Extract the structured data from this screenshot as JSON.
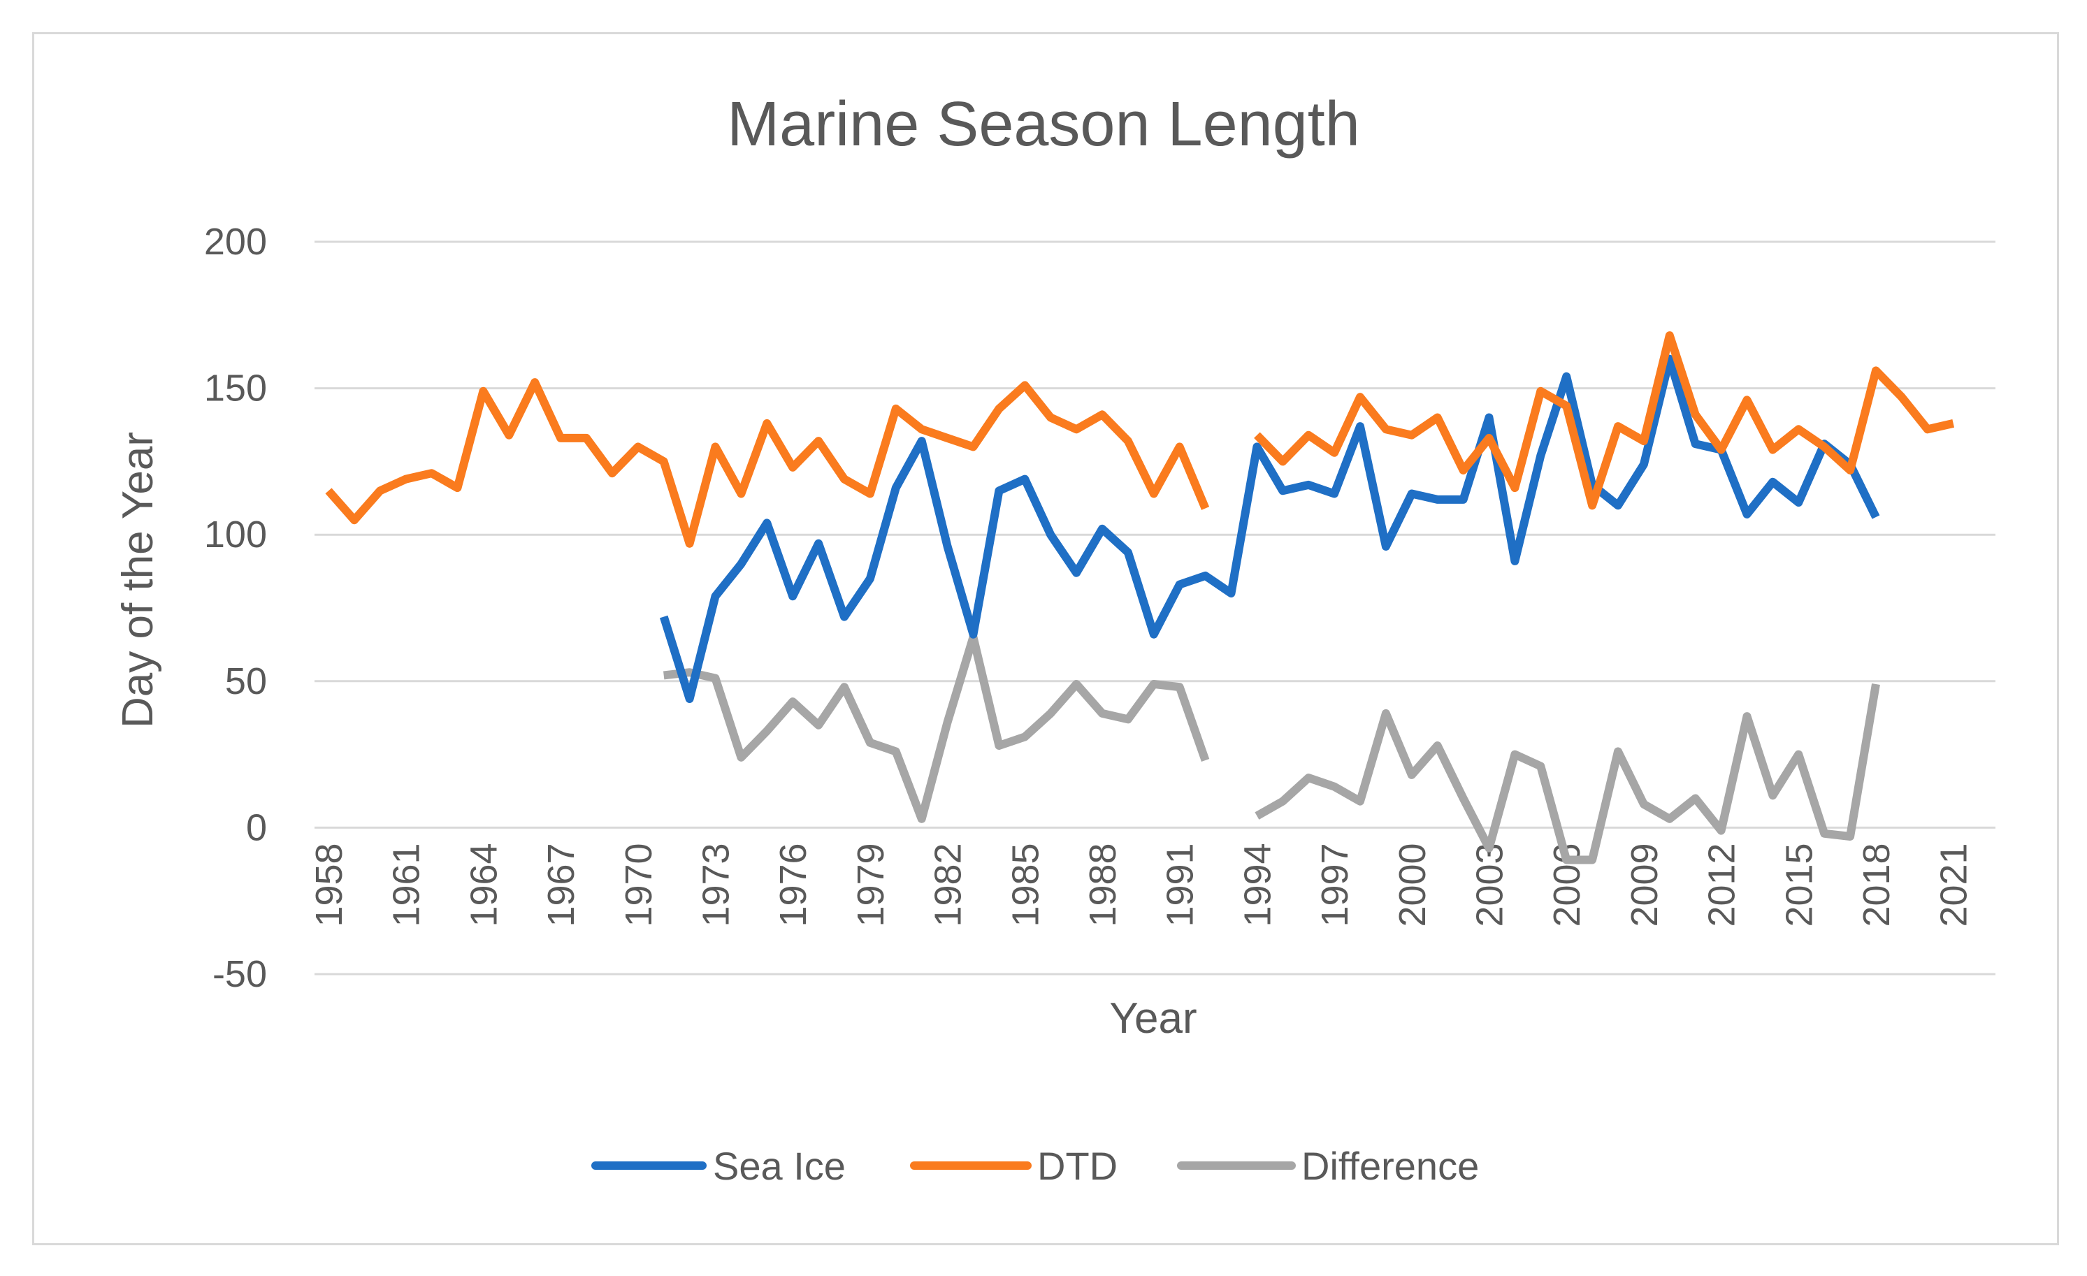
{
  "chart_data": {
    "type": "line",
    "title": "Marine Season Length",
    "xlabel": "Year",
    "ylabel": "Day of the Year",
    "ylim": [
      -50,
      200
    ],
    "yticks": [
      -50,
      0,
      50,
      100,
      150,
      200
    ],
    "xlim": [
      1958,
      2021
    ],
    "xtick_labels": [
      "1958",
      "1961",
      "1964",
      "1967",
      "1970",
      "1973",
      "1976",
      "1979",
      "1982",
      "1985",
      "1988",
      "1991",
      "1994",
      "1997",
      "2000",
      "2003",
      "2006",
      "2009",
      "2012",
      "2015",
      "2018",
      "2021"
    ],
    "grid": true,
    "legend_position": "bottom",
    "colors": {
      "Sea Ice": "#1f6fc5",
      "DTD": "#fa7b1e",
      "Difference": "#a6a6a6",
      "grid": "#d9d9d9",
      "text": "#595959"
    },
    "series": [
      {
        "name": "Sea Ice",
        "x": [
          1971,
          1972,
          1973,
          1974,
          1975,
          1976,
          1977,
          1978,
          1979,
          1980,
          1981,
          1982,
          1983,
          1984,
          1985,
          1986,
          1987,
          1988,
          1989,
          1990,
          1991,
          1992,
          1993,
          1994,
          1995,
          1996,
          1997,
          1998,
          1999,
          2000,
          2001,
          2002,
          2003,
          2004,
          2005,
          2006,
          2007,
          2008,
          2009,
          2010,
          2011,
          2012,
          2013,
          2014,
          2015,
          2016,
          2017,
          2018
        ],
        "values": [
          72,
          44,
          79,
          90,
          104,
          79,
          97,
          72,
          85,
          116,
          132,
          96,
          66,
          115,
          119,
          100,
          87,
          102,
          94,
          66,
          83,
          86,
          80,
          130,
          115,
          117,
          114,
          137,
          96,
          114,
          112,
          112,
          140,
          91,
          127,
          154,
          117,
          110,
          124,
          160,
          131,
          129,
          107,
          118,
          111,
          131,
          124,
          106
        ]
      },
      {
        "name": "DTD",
        "x": [
          1958,
          1959,
          1960,
          1961,
          1962,
          1963,
          1964,
          1965,
          1966,
          1967,
          1968,
          1969,
          1970,
          1971,
          1972,
          1973,
          1974,
          1975,
          1976,
          1977,
          1978,
          1979,
          1980,
          1981,
          1982,
          1983,
          1984,
          1985,
          1986,
          1987,
          1988,
          1989,
          1990,
          1991,
          1992,
          1993,
          1994,
          1995,
          1996,
          1997,
          1998,
          1999,
          2000,
          2001,
          2002,
          2003,
          2004,
          2005,
          2006,
          2007,
          2008,
          2009,
          2010,
          2011,
          2012,
          2013,
          2014,
          2015,
          2016,
          2017,
          2018,
          2019,
          2020,
          2021
        ],
        "values": [
          115,
          105,
          115,
          119,
          121,
          116,
          149,
          134,
          152,
          133,
          133,
          121,
          130,
          125,
          97,
          130,
          114,
          138,
          123,
          132,
          119,
          114,
          143,
          136,
          133,
          130,
          143,
          151,
          140,
          136,
          141,
          132,
          114,
          130,
          109,
          null,
          134,
          125,
          134,
          128,
          147,
          136,
          134,
          140,
          122,
          133,
          116,
          149,
          144,
          110,
          137,
          132,
          168,
          141,
          129,
          146,
          129,
          136,
          130,
          122,
          156,
          147,
          136,
          138
        ]
      },
      {
        "name": "Difference",
        "x": [
          1971,
          1972,
          1973,
          1974,
          1975,
          1976,
          1977,
          1978,
          1979,
          1980,
          1981,
          1982,
          1983,
          1984,
          1985,
          1986,
          1987,
          1988,
          1989,
          1990,
          1991,
          1992,
          1993,
          1994,
          1995,
          1996,
          1997,
          1998,
          1999,
          2000,
          2001,
          2002,
          2003,
          2004,
          2005,
          2006,
          2007,
          2008,
          2009,
          2010,
          2011,
          2012,
          2013,
          2014,
          2015,
          2016,
          2017,
          2018
        ],
        "values": [
          52,
          53,
          51,
          24,
          33,
          43,
          35,
          48,
          29,
          26,
          3,
          36,
          65,
          28,
          31,
          39,
          49,
          39,
          37,
          49,
          48,
          23,
          null,
          4,
          9,
          17,
          14,
          9,
          39,
          18,
          28,
          10,
          -7,
          25,
          21,
          -11,
          -11,
          26,
          8,
          3,
          10,
          -1,
          38,
          11,
          25,
          -2,
          -3,
          49
        ]
      }
    ]
  }
}
